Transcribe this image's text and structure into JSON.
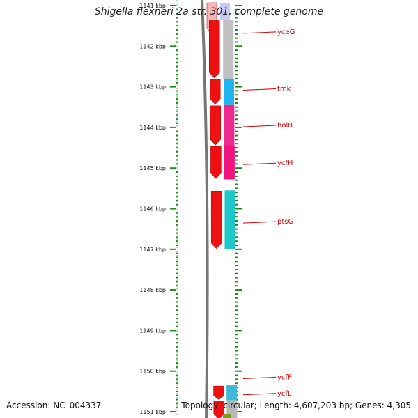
{
  "title": "Shigella flexneri 2a str. 301, complete genome",
  "footer": {
    "accession": "Accession: NC_004337",
    "topology": "Topology: circular; Length: 4,607,203 bp; Genes: 4,305"
  },
  "ruler": {
    "unit": "kbp",
    "start_kbp": 1141,
    "end_kbp": 1151,
    "ticks": [
      "1141 kbp",
      "1142 kbp",
      "1143 kbp",
      "1144 kbp",
      "1145 kbp",
      "1146 kbp",
      "1147 kbp",
      "1148 kbp",
      "1149 kbp",
      "1150 kbp",
      "1151 kbp"
    ]
  },
  "genes": [
    {
      "name": "yceG",
      "start_kbp": 1141.35,
      "end_kbp": 1142.8,
      "color": "#c0c0c0",
      "label_at_kbp": 1141.65
    },
    {
      "name": "tmk",
      "start_kbp": 1142.8,
      "end_kbp": 1143.45,
      "color": "#1eb4f0",
      "label_at_kbp": 1143.05
    },
    {
      "name": "holB",
      "start_kbp": 1143.45,
      "end_kbp": 1144.45,
      "color": "#ee2a8e",
      "label_at_kbp": 1143.95
    },
    {
      "name": "ycfH",
      "start_kbp": 1144.45,
      "end_kbp": 1145.28,
      "color": "#f0147f",
      "label_at_kbp": 1144.88
    },
    {
      "name": "ptsG",
      "start_kbp": 1145.55,
      "end_kbp": 1147.0,
      "color": "#1ec8c8",
      "label_at_kbp": 1146.32
    },
    {
      "name": "ycfF",
      "start_kbp": 1150.35,
      "end_kbp": 1150.72,
      "color": "#40b8d8",
      "label_at_kbp": 1150.15
    },
    {
      "name": "ycfL",
      "start_kbp": 1150.72,
      "end_kbp": 1151.2,
      "color": "#b8b8b8",
      "label_at_kbp": 1150.55
    }
  ],
  "colors": {
    "backbone": "#777777",
    "strand_arrows": "#ee1111",
    "tick_marks": "#1a8a1a",
    "gene_label": "#cc0000",
    "top_fade": "#0000dd",
    "bottom_strip": "#7a9a20"
  }
}
